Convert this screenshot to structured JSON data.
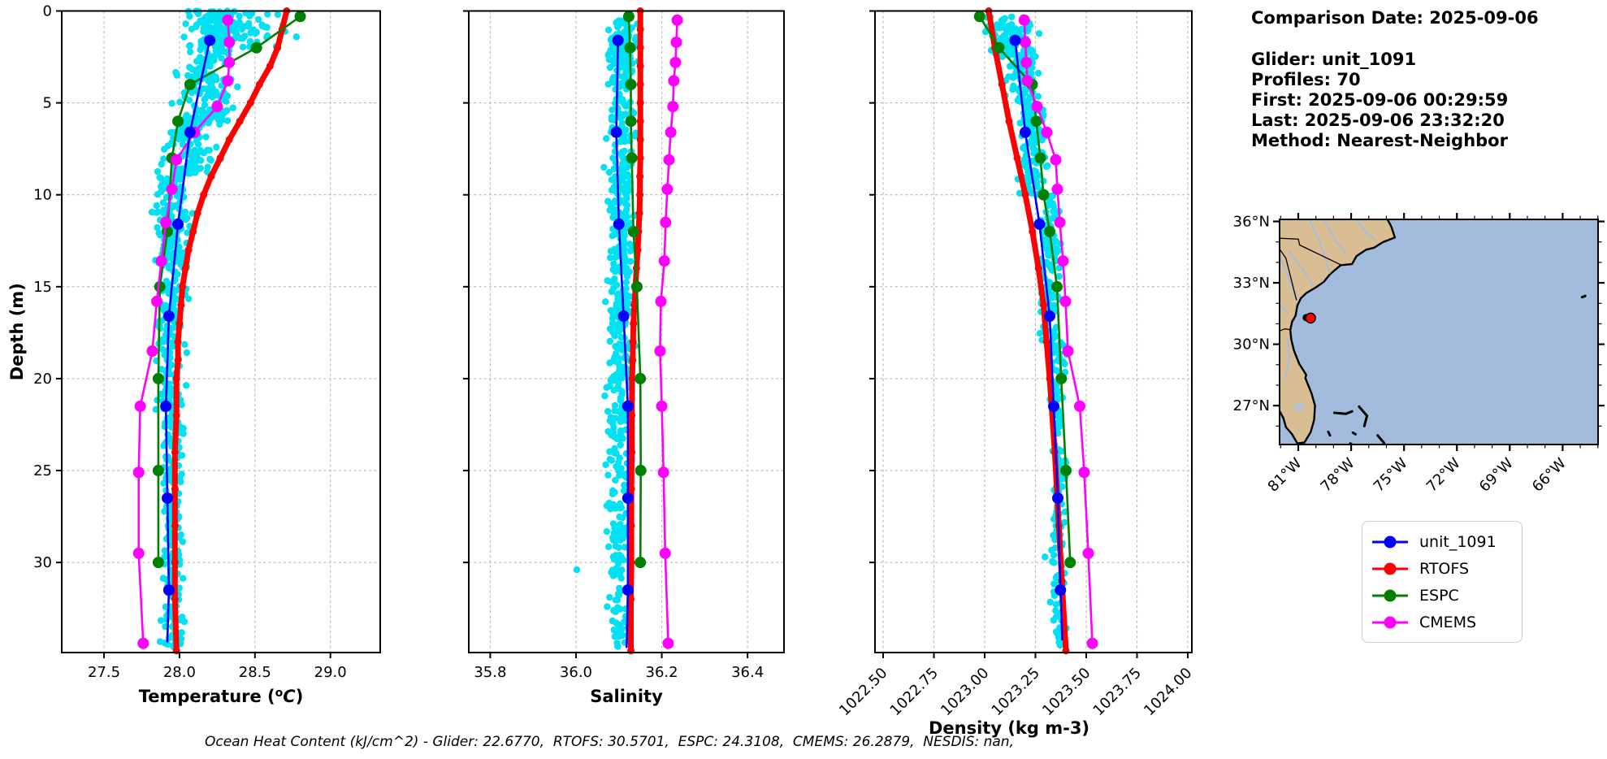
{
  "info_panel": {
    "comparison_date": "Comparison Date: 2025-09-06",
    "glider": "Glider: unit_1091",
    "profiles": "Profiles: 70",
    "first": "First: 2025-09-06 00:29:59",
    "last": "Last: 2025-09-06 23:32:20",
    "method": "Method: Nearest-Neighbor"
  },
  "footer": {
    "ohc_note": "Ocean Heat Content (kJ/cm^2) - Glider: 22.6770,  RTOFS: 30.5701,  ESPC: 24.3108,  CMEMS: 26.2879,  NESDIS: nan,"
  },
  "legend": {
    "items": [
      {
        "label": "unit_1091",
        "color": "#0000ff"
      },
      {
        "label": "RTOFS",
        "color": "#ff0000"
      },
      {
        "label": "ESPC",
        "color": "#008000"
      },
      {
        "label": "CMEMS",
        "color": "#ff00ff"
      }
    ]
  },
  "chart_data": [
    {
      "type": "line",
      "title": "",
      "xlabel": "Temperature (°C)",
      "xlabel_parts": {
        "pre": "Temperature (",
        "sup": "o",
        "ital": "C",
        "post": ")"
      },
      "ylabel": "Depth (m)",
      "xlim": [
        27.22,
        29.33
      ],
      "ylim": [
        0,
        34.9
      ],
      "xticks": [
        27.5,
        28.0,
        28.5,
        29.0
      ],
      "xtick_labels": [
        "27.5",
        "28.0",
        "28.5",
        "29.0"
      ],
      "yticks": [
        0,
        5,
        10,
        15,
        20,
        25,
        30
      ],
      "ytick_labels": [
        "0",
        "5",
        "10",
        "15",
        "20",
        "25",
        "30"
      ],
      "grid": true,
      "show_ytick_labels": true,
      "rotated_xticks": false,
      "scatter": {
        "name": "glider-raw-observations",
        "color": "#00e1f2",
        "radius": 4.2,
        "seed": 11,
        "bands": [
          [
            0,
            2,
            28.0,
            28.85,
            70
          ],
          [
            0,
            3,
            28.02,
            28.42,
            120
          ],
          [
            3,
            6,
            27.9,
            28.45,
            110
          ],
          [
            6,
            9,
            27.82,
            28.3,
            100
          ],
          [
            9,
            14,
            27.78,
            28.12,
            150
          ],
          [
            14,
            22,
            27.8,
            28.08,
            150
          ],
          [
            22,
            34.6,
            27.85,
            28.06,
            170
          ]
        ],
        "outliers": []
      },
      "series": [
        {
          "name": "RTOFS",
          "color": "#ff0000",
          "width": 7,
          "marker": 4.5,
          "depths": [
            0,
            1,
            2,
            3,
            4,
            5,
            6,
            7,
            8,
            9,
            10,
            11,
            12,
            13,
            14,
            15,
            16,
            17,
            18,
            19,
            20,
            22,
            24,
            26,
            28,
            30,
            32,
            34.8
          ],
          "values": [
            28.71,
            28.68,
            28.65,
            28.6,
            28.53,
            28.47,
            28.4,
            28.33,
            28.27,
            28.21,
            28.16,
            28.12,
            28.09,
            28.06,
            28.04,
            28.02,
            28.01,
            28.0,
            27.99,
            27.99,
            27.98,
            27.98,
            27.97,
            27.97,
            27.97,
            27.97,
            27.97,
            27.98
          ]
        },
        {
          "name": "ESPC",
          "color": "#008000",
          "width": 2.6,
          "marker": 7,
          "depths": [
            0.3,
            2,
            4,
            6,
            8,
            12,
            15,
            20,
            25,
            30
          ],
          "values": [
            28.8,
            28.51,
            28.07,
            27.99,
            27.95,
            27.92,
            27.87,
            27.86,
            27.86,
            27.86
          ]
        },
        {
          "name": "CMEMS",
          "color": "#ff00ff",
          "width": 2.6,
          "marker": 7,
          "depths": [
            0.5,
            1.7,
            2.8,
            3.8,
            5.2,
            6.6,
            8.1,
            9.7,
            11.5,
            13.6,
            15.8,
            18.5,
            21.5,
            25.1,
            29.5,
            34.4
          ],
          "values": [
            28.32,
            28.33,
            28.33,
            28.32,
            28.25,
            28.1,
            27.98,
            27.95,
            27.91,
            27.88,
            27.85,
            27.82,
            27.74,
            27.73,
            27.73,
            27.76
          ]
        },
        {
          "name": "unit_1091",
          "color": "#0000ff",
          "width": 2.6,
          "marker": 7,
          "depths": [
            1.6,
            6.6,
            11.6,
            16.6,
            21.5,
            26.5,
            31.5
          ],
          "values": [
            28.2,
            28.07,
            27.99,
            27.93,
            27.91,
            27.92,
            27.93
          ],
          "tail": [
            27.92,
            34.3
          ]
        }
      ]
    },
    {
      "type": "line",
      "title": "",
      "xlabel": "Salinity",
      "ylabel": "",
      "xlim": [
        35.75,
        36.485
      ],
      "ylim": [
        0,
        34.9
      ],
      "xticks": [
        35.8,
        36.0,
        36.2,
        36.4
      ],
      "xtick_labels": [
        "35.8",
        "36.0",
        "36.2",
        "36.4"
      ],
      "yticks": [
        0,
        5,
        10,
        15,
        20,
        25,
        30
      ],
      "ytick_labels": [],
      "grid": true,
      "show_ytick_labels": false,
      "rotated_xticks": false,
      "scatter": {
        "name": "glider-raw-observations",
        "color": "#00e1f2",
        "radius": 4.2,
        "seed": 23,
        "bands": [
          [
            0.5,
            3,
            36.07,
            36.165,
            60
          ],
          [
            1,
            34.6,
            36.06,
            36.14,
            420
          ],
          [
            3,
            20,
            36.08,
            36.148,
            130
          ]
        ],
        "outliers": [
          [
            36.002,
            30.4
          ]
        ]
      },
      "series": [
        {
          "name": "RTOFS",
          "color": "#ff0000",
          "width": 7,
          "marker": 4.5,
          "depths": [
            0,
            1,
            2,
            3,
            4,
            5,
            6,
            7,
            8,
            9,
            10,
            11,
            12,
            13,
            14,
            15,
            16,
            17,
            18,
            19,
            20,
            22,
            24,
            26,
            28,
            30,
            32,
            34.8
          ],
          "values": [
            36.15,
            36.15,
            36.15,
            36.15,
            36.15,
            36.15,
            36.15,
            36.15,
            36.15,
            36.149,
            36.149,
            36.148,
            36.146,
            36.144,
            36.141,
            36.139,
            36.136,
            36.134,
            36.133,
            36.132,
            36.131,
            36.13,
            36.13,
            36.129,
            36.129,
            36.129,
            36.128,
            36.128
          ]
        },
        {
          "name": "ESPC",
          "color": "#008000",
          "width": 2.6,
          "marker": 7,
          "depths": [
            0.3,
            2,
            4,
            6,
            8,
            12,
            15,
            20,
            25,
            30
          ],
          "values": [
            36.123,
            36.126,
            36.128,
            36.128,
            36.13,
            36.134,
            36.142,
            36.15,
            36.151,
            36.15
          ]
        },
        {
          "name": "CMEMS",
          "color": "#ff00ff",
          "width": 2.6,
          "marker": 7,
          "depths": [
            0.5,
            1.7,
            2.8,
            3.8,
            5.2,
            6.6,
            8.1,
            9.7,
            11.5,
            13.6,
            15.8,
            18.5,
            21.5,
            25.1,
            29.5,
            34.4
          ],
          "values": [
            36.236,
            36.234,
            36.232,
            36.228,
            36.226,
            36.221,
            36.217,
            36.213,
            36.209,
            36.206,
            36.198,
            36.196,
            36.2,
            36.204,
            36.208,
            36.215
          ]
        },
        {
          "name": "unit_1091",
          "color": "#0000ff",
          "width": 2.6,
          "marker": 7,
          "depths": [
            1.6,
            6.6,
            11.6,
            16.6,
            21.5,
            26.5,
            31.5
          ],
          "values": [
            36.098,
            36.094,
            36.1,
            36.111,
            36.121,
            36.121,
            36.121
          ],
          "tail": [
            36.118,
            34.6
          ]
        }
      ]
    },
    {
      "type": "line",
      "title": "",
      "xlabel": "Density (kg m-3)",
      "ylabel": "",
      "xlim": [
        1022.46,
        1024.02
      ],
      "ylim": [
        0,
        34.9
      ],
      "xticks": [
        1022.5,
        1022.75,
        1023.0,
        1023.25,
        1023.5,
        1023.75,
        1024.0
      ],
      "xtick_labels": [
        "1022.50",
        "1022.75",
        "1023.00",
        "1023.25",
        "1023.50",
        "1023.75",
        "1024.00"
      ],
      "yticks": [
        0,
        5,
        10,
        15,
        20,
        25,
        30
      ],
      "ytick_labels": [],
      "grid": true,
      "show_ytick_labels": false,
      "rotated_xticks": true,
      "scatter": {
        "name": "glider-raw-observations",
        "color": "#00e1f2",
        "radius": 4.2,
        "seed": 37,
        "bands": [
          [
            0.3,
            2.5,
            1022.96,
            1023.26,
            70
          ],
          [
            1,
            5,
            1023.05,
            1023.3,
            100
          ],
          [
            5,
            10,
            1023.14,
            1023.33,
            110
          ],
          [
            10,
            18,
            1023.25,
            1023.39,
            130
          ],
          [
            18,
            34.6,
            1023.31,
            1023.42,
            150
          ]
        ],
        "outliers": [
          [
            1023.297,
            29.7
          ]
        ]
      },
      "series": [
        {
          "name": "RTOFS",
          "color": "#ff0000",
          "width": 7,
          "marker": 4.5,
          "depths": [
            0,
            2,
            4,
            6,
            8,
            10,
            12,
            14,
            16,
            18,
            20,
            24,
            28,
            31,
            34.8
          ],
          "values": [
            1023.02,
            1023.05,
            1023.085,
            1023.12,
            1023.16,
            1023.2,
            1023.235,
            1023.265,
            1023.29,
            1023.305,
            1023.32,
            1023.345,
            1023.365,
            1023.38,
            1023.4
          ]
        },
        {
          "name": "ESPC",
          "color": "#008000",
          "width": 2.6,
          "marker": 7,
          "depths": [
            0.3,
            2,
            4,
            6,
            8,
            10,
            12,
            15,
            20,
            25,
            30
          ],
          "values": [
            1022.975,
            1023.07,
            1023.234,
            1023.254,
            1023.274,
            1023.29,
            1023.32,
            1023.356,
            1023.377,
            1023.4,
            1023.421
          ]
        },
        {
          "name": "CMEMS",
          "color": "#ff00ff",
          "width": 2.6,
          "marker": 7,
          "depths": [
            0.5,
            1.7,
            2.8,
            3.8,
            5.2,
            6.6,
            8.1,
            9.7,
            11.5,
            13.6,
            15.8,
            18.5,
            21.5,
            25.1,
            29.5,
            34.4
          ],
          "values": [
            1023.195,
            1023.2,
            1023.205,
            1023.21,
            1023.258,
            1023.306,
            1023.35,
            1023.358,
            1023.37,
            1023.386,
            1023.398,
            1023.41,
            1023.468,
            1023.49,
            1023.51,
            1023.53
          ]
        },
        {
          "name": "unit_1091",
          "color": "#0000ff",
          "width": 2.6,
          "marker": 7,
          "depths": [
            1.6,
            6.6,
            11.6,
            16.6,
            21.5,
            26.5,
            31.5
          ],
          "values": [
            1023.15,
            1023.2,
            1023.27,
            1023.32,
            1023.34,
            1023.36,
            1023.373
          ],
          "tail": [
            1023.382,
            34.2
          ]
        }
      ]
    }
  ],
  "map": {
    "extent": {
      "lon_min": -82.06,
      "lon_max": -63.99,
      "lat_min": 25.1,
      "lat_max": 36.1
    },
    "lon_ticks": [
      -81,
      -78,
      -75,
      -72,
      -69,
      -66
    ],
    "lon_tick_labels": [
      "81°W",
      "78°W",
      "75°W",
      "72°W",
      "69°W",
      "66°W"
    ],
    "lat_ticks": [
      36,
      33,
      30,
      27
    ],
    "lat_tick_labels": [
      "36°N",
      "33°N",
      "30°N",
      "27°N"
    ],
    "colors": {
      "ocean": "#a3bcdd",
      "land": "#d9bd93",
      "coast": "#000000",
      "river": "#9fbce8",
      "lake": "#b9c2cc"
    },
    "glider_marker": {
      "lon": -80.3,
      "lat": 31.28,
      "color": "#ff0000"
    },
    "track_marker": {
      "lon": -80.55,
      "lat": 31.3,
      "color": "#000000"
    }
  }
}
